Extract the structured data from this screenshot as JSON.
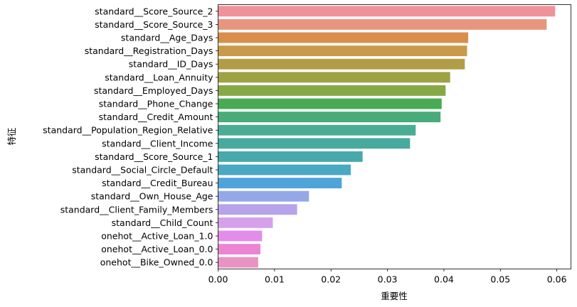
{
  "chart_data": {
    "type": "bar",
    "orientation": "horizontal",
    "title": "",
    "xlabel": "重要性",
    "ylabel": "特征",
    "xlim": [
      0,
      0.0625
    ],
    "x_ticks": [
      0.0,
      0.01,
      0.02,
      0.03,
      0.04,
      0.05,
      0.06
    ],
    "x_tick_labels": [
      "0.00",
      "0.01",
      "0.02",
      "0.03",
      "0.04",
      "0.05",
      "0.06"
    ],
    "grid": false,
    "legend": "none",
    "categories": [
      "standard__Score_Source_2",
      "standard__Score_Source_3",
      "standard__Age_Days",
      "standard__Registration_Days",
      "standard__ID_Days",
      "standard__Loan_Annuity",
      "standard__Employed_Days",
      "standard__Phone_Change",
      "standard__Credit_Amount",
      "standard__Population_Region_Relative",
      "standard__Client_Income",
      "standard__Score_Source_1",
      "standard__Social_Circle_Default",
      "standard__Credit_Bureau",
      "standard__Own_House_Age",
      "standard__Client_Family_Members",
      "standard__Child_Count",
      "onehot__Active_Loan_1.0",
      "onehot__Active_Loan_0.0",
      "onehot__Bike_Owned_0.0"
    ],
    "values": [
      0.0597,
      0.0582,
      0.0443,
      0.0441,
      0.0437,
      0.0411,
      0.0403,
      0.0396,
      0.0394,
      0.035,
      0.034,
      0.0256,
      0.0235,
      0.0219,
      0.0161,
      0.014,
      0.0097,
      0.0078,
      0.0075,
      0.0071
    ],
    "colors": [
      "#f0929a",
      "#e8957d",
      "#d98e4c",
      "#c99a4a",
      "#b29d47",
      "#9ea244",
      "#86a845",
      "#4aaa53",
      "#49aa7a",
      "#4aac93",
      "#48aa9f",
      "#47a9ae",
      "#49a8c2",
      "#4ea4d9",
      "#94a8e8",
      "#b6a3ea",
      "#d6a1ea",
      "#e38cea",
      "#eb85d3",
      "#ea93c2"
    ]
  }
}
